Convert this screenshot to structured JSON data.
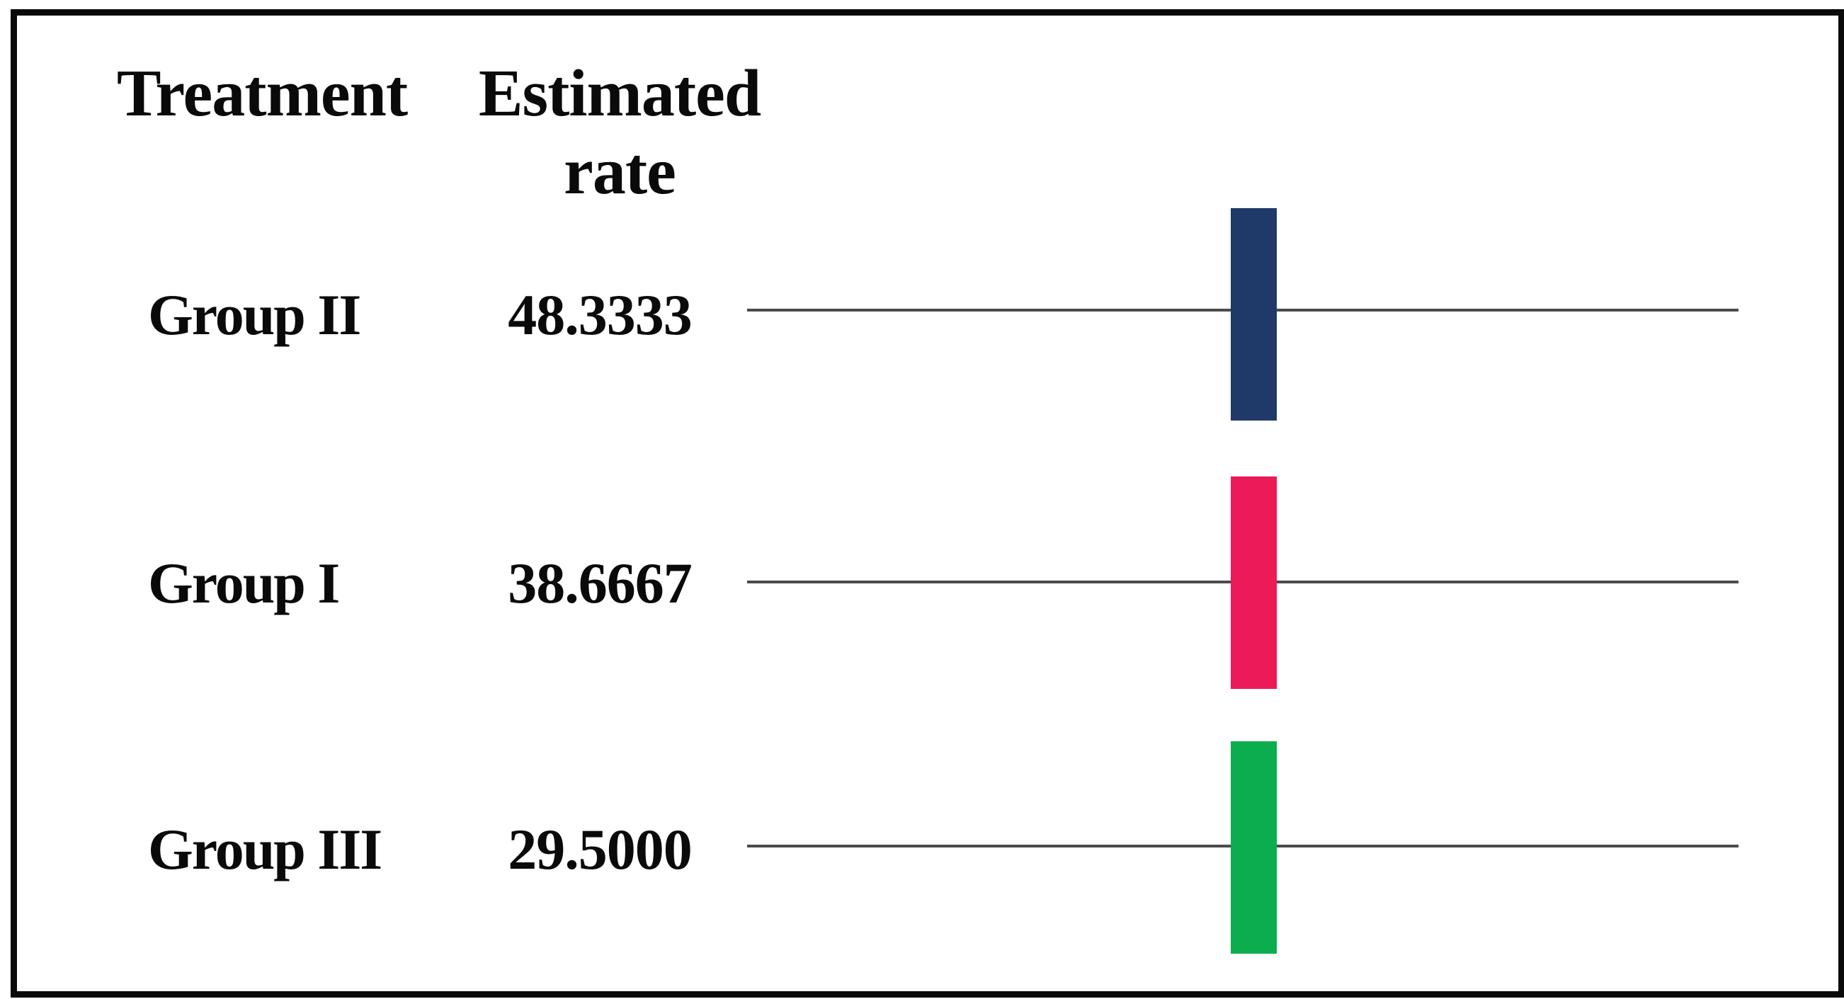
{
  "figure": {
    "columns": {
      "treatment": "Treatment",
      "estimated_rate": "Estimated rate"
    },
    "rows": [
      {
        "label": "Group II",
        "value": "48.3333",
        "bar_color": "#1f3a68",
        "bar_color_name": "navy-blue"
      },
      {
        "label": "Group I",
        "value": "38.6667",
        "bar_color": "#ec1b58",
        "bar_color_name": "crimson-pink"
      },
      {
        "label": "Group III",
        "value": "29.5000",
        "bar_color": "#0cad4f",
        "bar_color_name": "green"
      }
    ],
    "colors": {
      "reference_line": "#4b4b4b",
      "frame_border": "#0a0a0a",
      "background": "#ffffff",
      "text": "#0a0a0a"
    }
  },
  "chart_data": {
    "type": "bar",
    "title": "",
    "columns": [
      "Treatment",
      "Estimated rate"
    ],
    "categories": [
      "Group II",
      "Group I",
      "Group III"
    ],
    "values": [
      48.3333,
      38.6667,
      29.5
    ],
    "value_labels": [
      "48.3333",
      "38.6667",
      "29.5000"
    ],
    "series_colors": [
      "#1f3a68",
      "#ec1b58",
      "#0cad4f"
    ],
    "xlabel": "",
    "ylabel": "",
    "legend": "none",
    "grid": "off",
    "layout_hint": "Each category row lists its estimated rate and shows a horizontal reference line crossed by a vertical colored bar marker at the same x position"
  }
}
